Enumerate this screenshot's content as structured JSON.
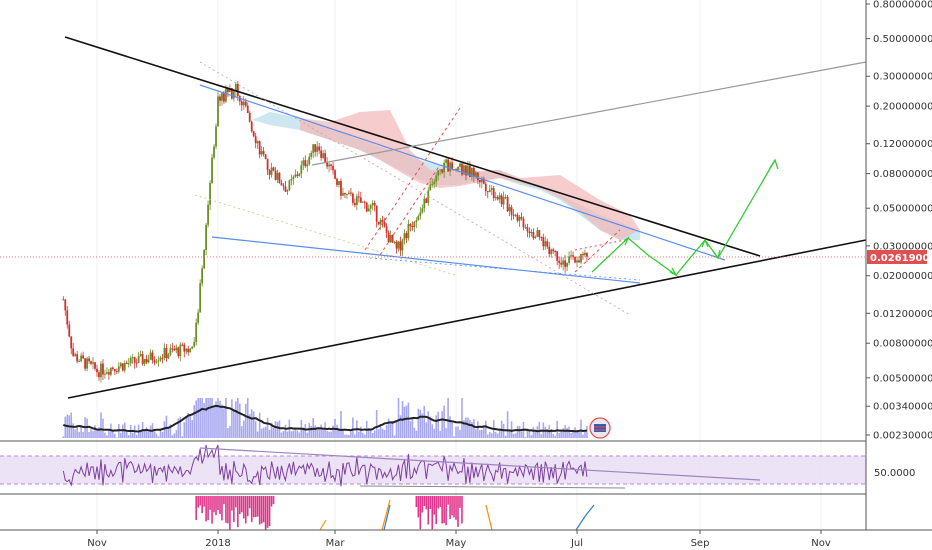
{
  "chart_data": {
    "type": "candlestick",
    "scale": "log",
    "y_ticks": [
      "0.80000000",
      "0.50000000",
      "0.30000000",
      "0.20000000",
      "0.12000000",
      "0.08000000",
      "0.05000000",
      "0.03000000",
      "0.02000000",
      "0.01200000",
      "0.00800000",
      "0.00500000",
      "0.00340000",
      "0.00230000"
    ],
    "y_tick_values": [
      0.8,
      0.5,
      0.3,
      0.2,
      0.12,
      0.08,
      0.05,
      0.03,
      0.02,
      0.012,
      0.008,
      0.005,
      0.0034,
      0.0023
    ],
    "x_ticks": [
      "Nov",
      "2018",
      "Mar",
      "May",
      "Jul",
      "Sep",
      "Nov"
    ],
    "current_price_label": "0.02619000",
    "current_price": 0.02619,
    "rsi_label": "50.0000",
    "price_series_approx": {
      "x": [
        "2017-10-15",
        "2017-10-20",
        "2017-11-01",
        "2017-11-20",
        "2017-12-10",
        "2017-12-20",
        "2018-01-01",
        "2018-01-10",
        "2018-01-15",
        "2018-01-25",
        "2018-02-05",
        "2018-02-20",
        "2018-03-05",
        "2018-03-20",
        "2018-04-01",
        "2018-04-15",
        "2018-04-25",
        "2018-05-10",
        "2018-05-25",
        "2018-06-10",
        "2018-06-25",
        "2018-07-05"
      ],
      "close": [
        0.0145,
        0.0068,
        0.0055,
        0.0062,
        0.0072,
        0.0075,
        0.22,
        0.25,
        0.19,
        0.09,
        0.065,
        0.12,
        0.06,
        0.05,
        0.028,
        0.055,
        0.09,
        0.08,
        0.055,
        0.035,
        0.024,
        0.026
      ]
    },
    "colors": {
      "up_candle": "#6b8e23",
      "down_candle": "#d32f2f",
      "trendline": "#111111",
      "channel": "#5b8def",
      "projection_arrow": "#33cc33",
      "cloud_bear": "#f4b6b6",
      "cloud_bull": "#b6dde8",
      "volume": "#9999ee",
      "rsi_line": "#7e3f9e",
      "rsi_band": "#e8dcf5",
      "macd_hist": "#e0348a",
      "price_label_bg": "#e05050"
    }
  }
}
